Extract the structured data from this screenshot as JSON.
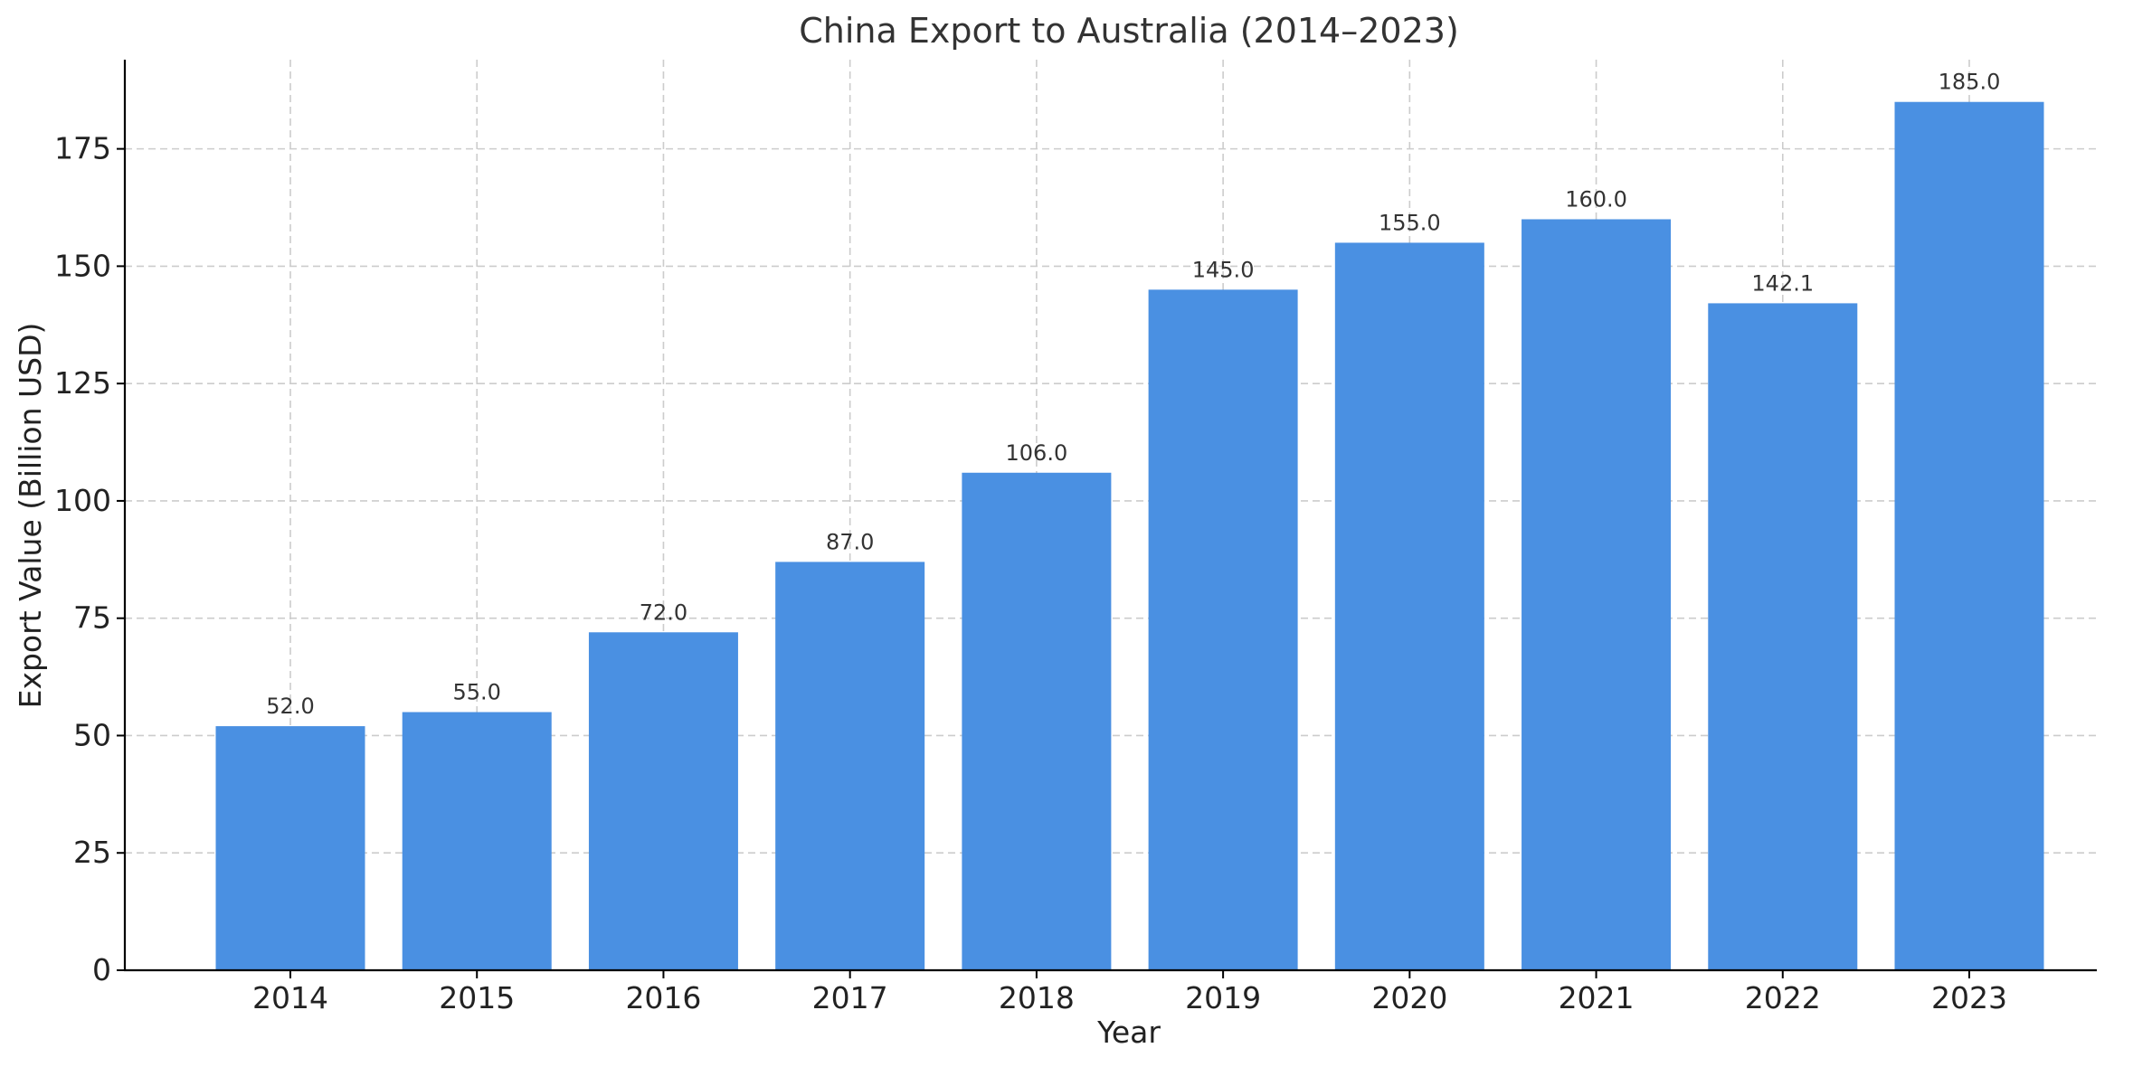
{
  "chart_data": {
    "type": "bar",
    "title": "China Export to Australia (2014–2023)",
    "xlabel": "Year",
    "ylabel": "Export Value (Billion USD)",
    "categories": [
      "2014",
      "2015",
      "2016",
      "2017",
      "2018",
      "2019",
      "2020",
      "2021",
      "2022",
      "2023"
    ],
    "values": [
      52.0,
      55.0,
      72.0,
      87.0,
      106.0,
      145.0,
      155.0,
      160.0,
      142.1,
      185.0
    ],
    "value_labels": [
      "52.0",
      "55.0",
      "72.0",
      "87.0",
      "106.0",
      "145.0",
      "155.0",
      "160.0",
      "142.1",
      "185.0"
    ],
    "ylim": [
      0,
      194
    ],
    "yticks": [
      0,
      25,
      50,
      75,
      100,
      125,
      150,
      175
    ],
    "grid": true,
    "legend": "none",
    "bar_color": "#4a90e2"
  }
}
